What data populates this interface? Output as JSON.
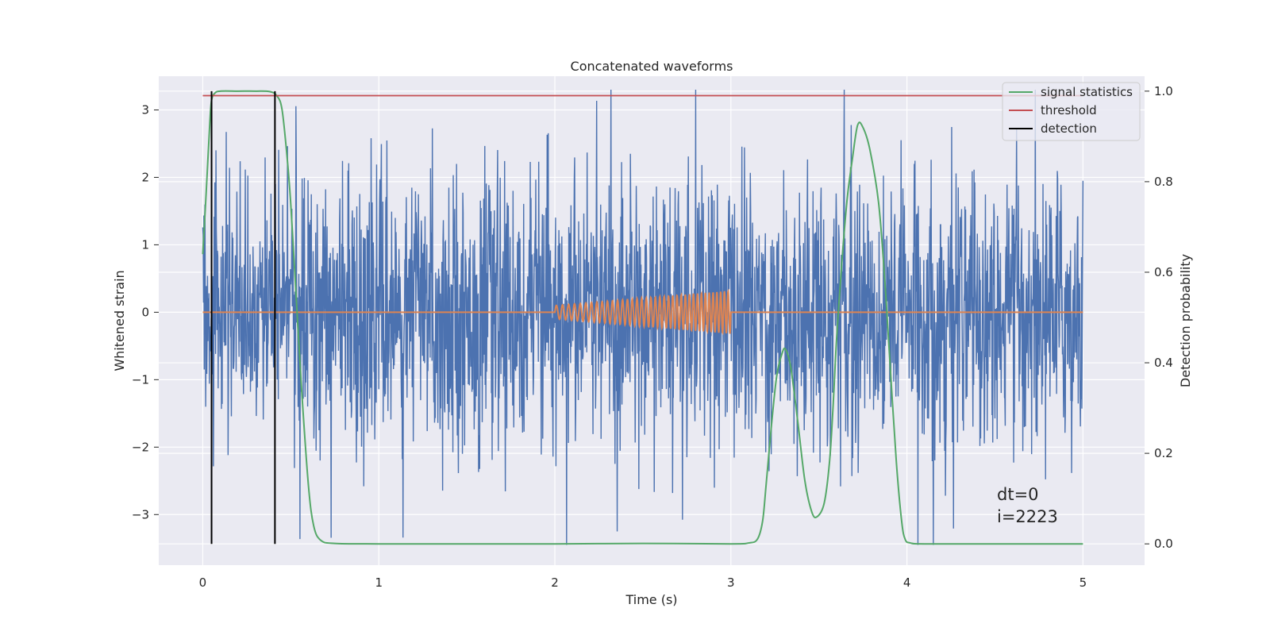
{
  "colors": {
    "background": "#ffffff",
    "plot_bg": "#eaeaf2",
    "grid": "#ffffff",
    "noisy": "#4c72b0",
    "clean": "#dd8452",
    "stats": "#55a868",
    "threshold": "#c44e52",
    "detection": "#000000"
  },
  "chart_data": {
    "type": "line",
    "title": "Concatenated waveforms",
    "xlabel": "Time (s)",
    "ylabel_left": "Whitened strain",
    "ylabel_right": "Detection probability",
    "xlim": [
      -0.25,
      5.35
    ],
    "ylim_left": [
      -3.75,
      3.5
    ],
    "ylim_right": [
      -0.047,
      1.033
    ],
    "x_ticks": [
      0,
      1,
      2,
      3,
      4,
      5
    ],
    "y_ticks_left": [
      -3,
      -2,
      -1,
      0,
      1,
      2,
      3
    ],
    "y_ticks_right": [
      0.0,
      0.2,
      0.4,
      0.6,
      0.8,
      1.0
    ],
    "grid": true,
    "legend_position": "top-right",
    "noisy_waveform": {
      "axis": "left",
      "x_range": [
        0,
        5
      ],
      "description_values": {
        "typical_amplitude": 1.5,
        "max": 3.3,
        "min": -3.45,
        "spike_at": [
          2.8,
          4.15
        ]
      }
    },
    "clean_waveform": {
      "axis": "left",
      "start": 2.0,
      "end": 3.0,
      "start_amplitude": 0.1,
      "end_amplitude": 0.32,
      "frequency_start": 28,
      "frequency_end": 48
    },
    "series": [
      {
        "name": "signal statistics",
        "axis": "right",
        "x": [
          0.0,
          0.02,
          0.04,
          0.05,
          0.07,
          0.1,
          0.2,
          0.3,
          0.38,
          0.42,
          0.45,
          0.48,
          0.5,
          0.53,
          0.56,
          0.6,
          0.63,
          0.67,
          0.75,
          1.0,
          1.5,
          2.0,
          2.5,
          3.0,
          3.1,
          3.15,
          3.18,
          3.2,
          3.23,
          3.26,
          3.29,
          3.31,
          3.34,
          3.38,
          3.42,
          3.46,
          3.49,
          3.53,
          3.56,
          3.58,
          3.6,
          3.63,
          3.66,
          3.69,
          3.72,
          3.75,
          3.79,
          3.84,
          3.88,
          3.91,
          3.94,
          3.97,
          3.99,
          4.02,
          4.1,
          4.5,
          5.0
        ],
        "y": [
          0.64,
          0.78,
          0.93,
          0.98,
          0.996,
          1.0,
          1.0,
          1.0,
          0.999,
          0.99,
          0.96,
          0.85,
          0.75,
          0.55,
          0.35,
          0.13,
          0.04,
          0.008,
          0.001,
          0.0,
          0.0,
          0.0,
          0.001,
          0.0,
          0.002,
          0.01,
          0.05,
          0.13,
          0.26,
          0.37,
          0.42,
          0.43,
          0.39,
          0.27,
          0.14,
          0.07,
          0.06,
          0.09,
          0.18,
          0.3,
          0.45,
          0.62,
          0.76,
          0.85,
          0.925,
          0.92,
          0.87,
          0.75,
          0.55,
          0.36,
          0.18,
          0.05,
          0.01,
          0.002,
          0.0,
          0.0,
          0.0
        ]
      },
      {
        "name": "threshold",
        "axis": "right",
        "x": [
          0.0,
          5.0
        ],
        "y": [
          0.99,
          0.99
        ]
      },
      {
        "name": "detection",
        "axis": "right",
        "x": [
          0.05,
          0.41
        ],
        "y_min": 0.0,
        "y_max": 1.0
      }
    ],
    "annotation": {
      "lines": [
        "dt=0",
        "i=2223"
      ],
      "x": 4.5
    }
  }
}
